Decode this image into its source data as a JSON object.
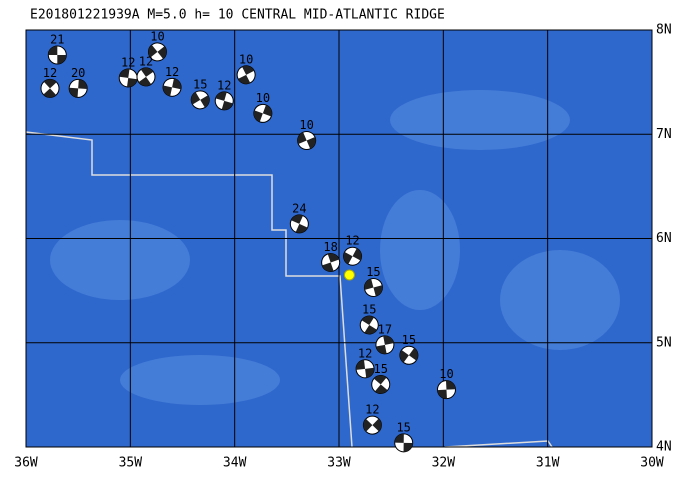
{
  "map": {
    "title": "E201801221939A  M=5.0  h= 10  CENTRAL MID-ATLANTIC RIDGE",
    "xlim": [
      -36,
      -30
    ],
    "ylim": [
      4,
      8
    ],
    "xticks": [
      {
        "value": -36,
        "label": "36W"
      },
      {
        "value": -35,
        "label": "35W"
      },
      {
        "value": -34,
        "label": "34W"
      },
      {
        "value": -33,
        "label": "33W"
      },
      {
        "value": -32,
        "label": "32W"
      },
      {
        "value": -31,
        "label": "31W"
      },
      {
        "value": -30,
        "label": "30W"
      }
    ],
    "yticks": [
      {
        "value": 8,
        "label": "8N"
      },
      {
        "value": 7,
        "label": "7N"
      },
      {
        "value": 6,
        "label": "6N"
      },
      {
        "value": 5,
        "label": "5N"
      },
      {
        "value": 4,
        "label": "4N"
      }
    ],
    "epicenter": {
      "lon": -32.9,
      "lat": 5.65
    },
    "events": [
      {
        "lon": -35.7,
        "lat": 7.76,
        "label": "21"
      },
      {
        "lon": -35.77,
        "lat": 7.44,
        "label": "12"
      },
      {
        "lon": -35.5,
        "lat": 7.44,
        "label": "20"
      },
      {
        "lon": -34.74,
        "lat": 7.79,
        "label": "10"
      },
      {
        "lon": -35.02,
        "lat": 7.54,
        "label": "12"
      },
      {
        "lon": -34.85,
        "lat": 7.55,
        "label": "12"
      },
      {
        "lon": -34.6,
        "lat": 7.45,
        "label": "12"
      },
      {
        "lon": -34.33,
        "lat": 7.33,
        "label": "15"
      },
      {
        "lon": -34.1,
        "lat": 7.32,
        "label": "12"
      },
      {
        "lon": -33.89,
        "lat": 7.57,
        "label": "10"
      },
      {
        "lon": -33.73,
        "lat": 7.2,
        "label": "10"
      },
      {
        "lon": -33.31,
        "lat": 6.94,
        "label": "10"
      },
      {
        "lon": -33.38,
        "lat": 6.14,
        "label": "24"
      },
      {
        "lon": -33.08,
        "lat": 5.77,
        "label": "18"
      },
      {
        "lon": -32.87,
        "lat": 5.83,
        "label": "12"
      },
      {
        "lon": -32.67,
        "lat": 5.53,
        "label": "15"
      },
      {
        "lon": -32.71,
        "lat": 5.17,
        "label": "15"
      },
      {
        "lon": -32.56,
        "lat": 4.98,
        "label": "17"
      },
      {
        "lon": -32.33,
        "lat": 4.88,
        "label": "15"
      },
      {
        "lon": -32.75,
        "lat": 4.75,
        "label": "12"
      },
      {
        "lon": -32.6,
        "lat": 4.6,
        "label": "15"
      },
      {
        "lon": -31.97,
        "lat": 4.55,
        "label": "10"
      },
      {
        "lon": -32.68,
        "lat": 4.21,
        "label": "12"
      },
      {
        "lon": -32.38,
        "lat": 4.04,
        "label": "15"
      }
    ]
  }
}
